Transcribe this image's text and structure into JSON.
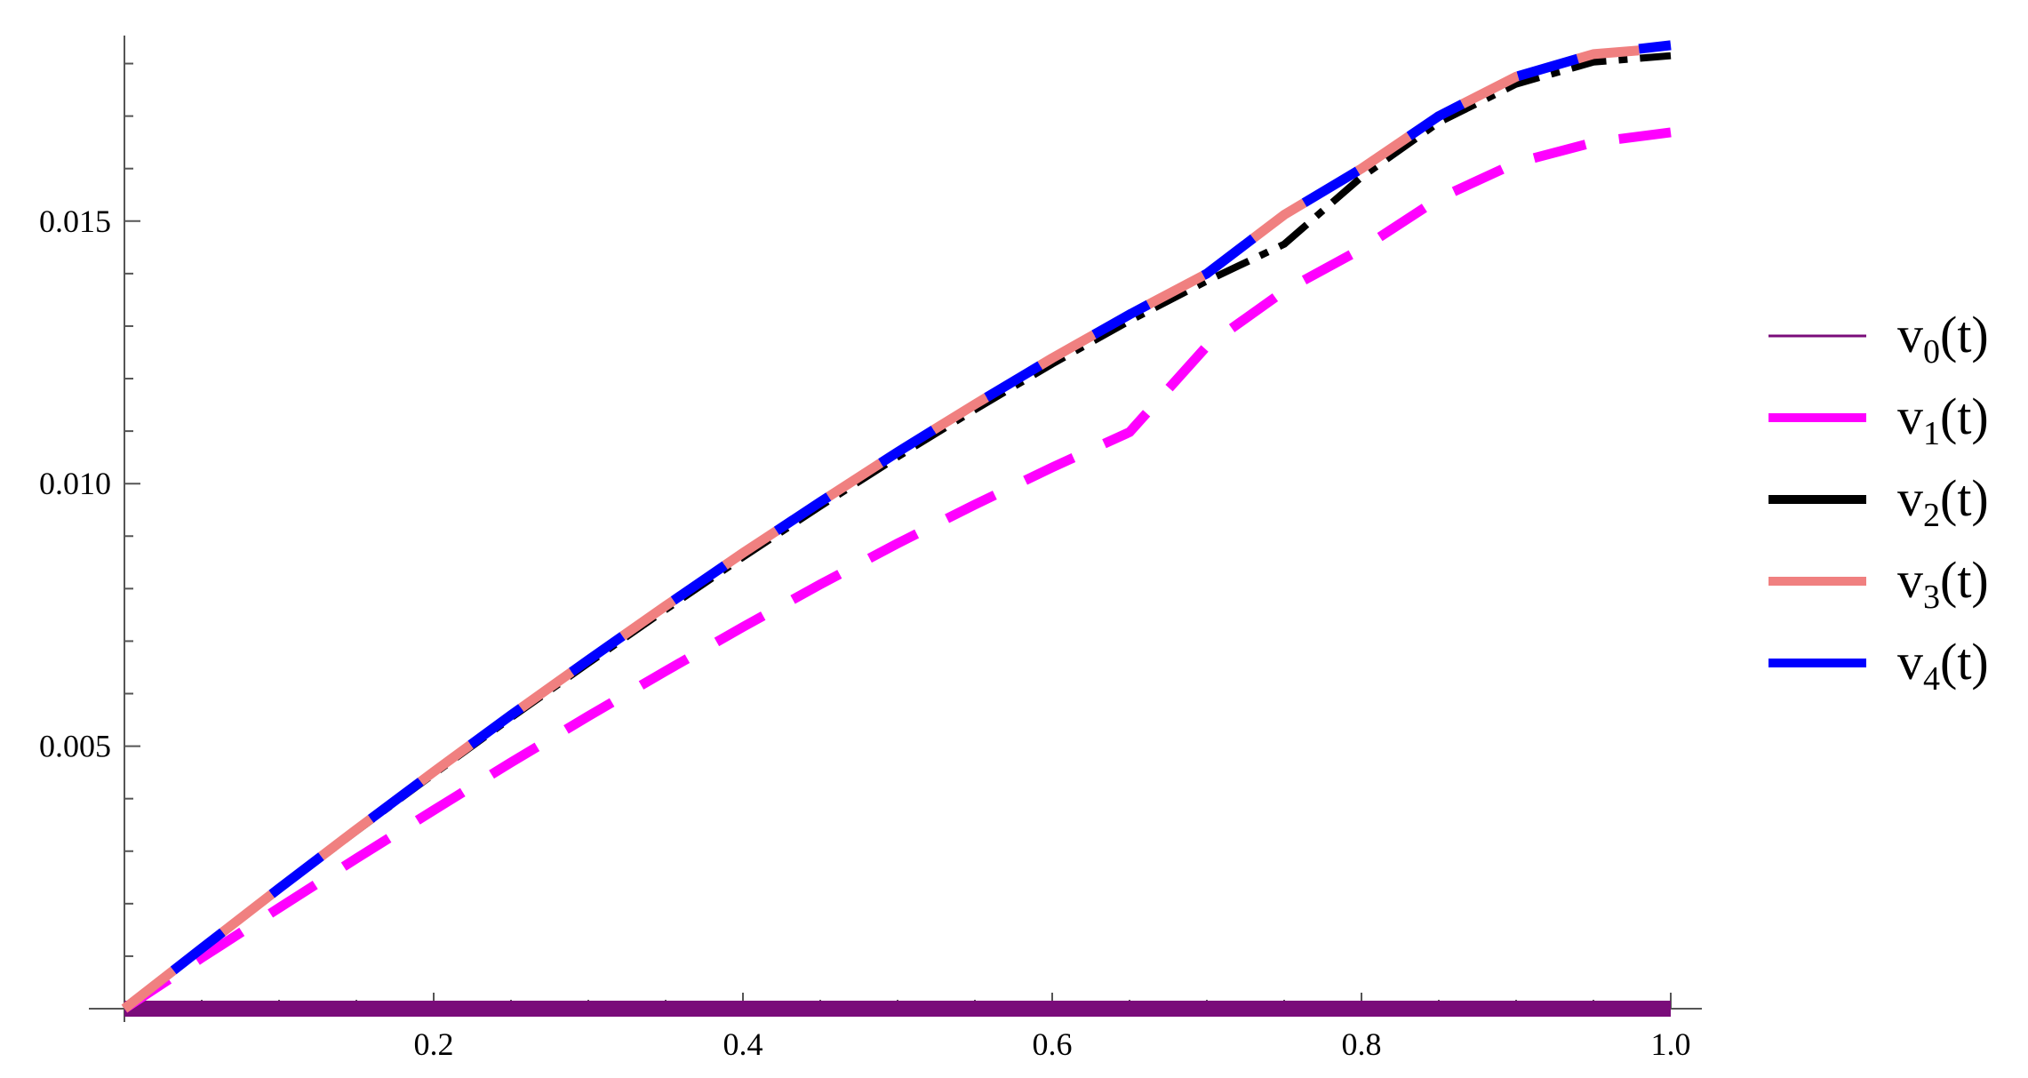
{
  "chart_data": {
    "type": "line",
    "title": "",
    "xlabel": "",
    "ylabel": "",
    "xlim": [
      0,
      1.0
    ],
    "ylim": [
      0,
      0.0185
    ],
    "x_ticks": [
      {
        "value": 0.2,
        "label": "0.2"
      },
      {
        "value": 0.4,
        "label": "0.4"
      },
      {
        "value": 0.6,
        "label": "0.6"
      },
      {
        "value": 0.8,
        "label": "0.8"
      },
      {
        "value": 1.0,
        "label": "1.0"
      }
    ],
    "x_minor_step": 0.05,
    "y_ticks": [
      {
        "value": 0.005,
        "label": "0.005"
      },
      {
        "value": 0.01,
        "label": "0.010"
      },
      {
        "value": 0.015,
        "label": "0.015"
      }
    ],
    "y_minor_step": 0.001,
    "grid": false,
    "legend_position": "right",
    "x": [
      0,
      0.05,
      0.1,
      0.15,
      0.2,
      0.25,
      0.3,
      0.35,
      0.4,
      0.45,
      0.5,
      0.55,
      0.6,
      0.65,
      0.7,
      0.75,
      0.8,
      0.85,
      0.9,
      0.95,
      1.0
    ],
    "series": [
      {
        "name": "v",
        "subscript": "0",
        "suffix": "(t)",
        "color": "#7a0c7a",
        "style": "solid-thick",
        "values": [
          0,
          0,
          0,
          0,
          0,
          0,
          0,
          0,
          0,
          0,
          0,
          0,
          0,
          0,
          0,
          0,
          0,
          0,
          0,
          0,
          0
        ]
      },
      {
        "name": "v",
        "subscript": "1",
        "suffix": "(t)",
        "color": "#ff00ff",
        "style": "dashed-long",
        "values": [
          0,
          0.00097,
          0.00192,
          0.00286,
          0.00378,
          0.00469,
          0.00557,
          0.00643,
          0.00727,
          0.00808,
          0.00886,
          0.0096,
          0.01031,
          0.01098,
          0.01262,
          0.01367,
          0.01447,
          0.01543,
          0.01611,
          0.0165,
          0.01669
        ]
      },
      {
        "name": "v",
        "subscript": "2",
        "suffix": "(t)",
        "color": "#000000",
        "style": "dash-dot",
        "values": [
          0,
          0.00114,
          0.00227,
          0.00338,
          0.00447,
          0.00554,
          0.00658,
          0.0076,
          0.0086,
          0.00957,
          0.01051,
          0.01141,
          0.01228,
          0.0131,
          0.01386,
          0.01456,
          0.01584,
          0.01688,
          0.01761,
          0.01803,
          0.01815
        ]
      },
      {
        "name": "v",
        "subscript": "3",
        "suffix": "(t)",
        "color": "#f08080",
        "style": "dashed",
        "values": [
          0,
          0.00115,
          0.00229,
          0.00341,
          0.00451,
          0.00559,
          0.00664,
          0.00767,
          0.00868,
          0.00965,
          0.0106,
          0.01151,
          0.01239,
          0.01322,
          0.014,
          0.01512,
          0.016,
          0.017,
          0.01775,
          0.01818,
          0.0183
        ]
      },
      {
        "name": "v",
        "subscript": "4",
        "suffix": "(t)",
        "color": "#0000ff",
        "style": "dashed-offset",
        "values": [
          0,
          0.00115,
          0.00229,
          0.00341,
          0.00451,
          0.00559,
          0.00664,
          0.00767,
          0.00868,
          0.00965,
          0.0106,
          0.01151,
          0.01239,
          0.01322,
          0.014,
          0.01512,
          0.016,
          0.017,
          0.01775,
          0.01818,
          0.01835
        ]
      }
    ]
  }
}
